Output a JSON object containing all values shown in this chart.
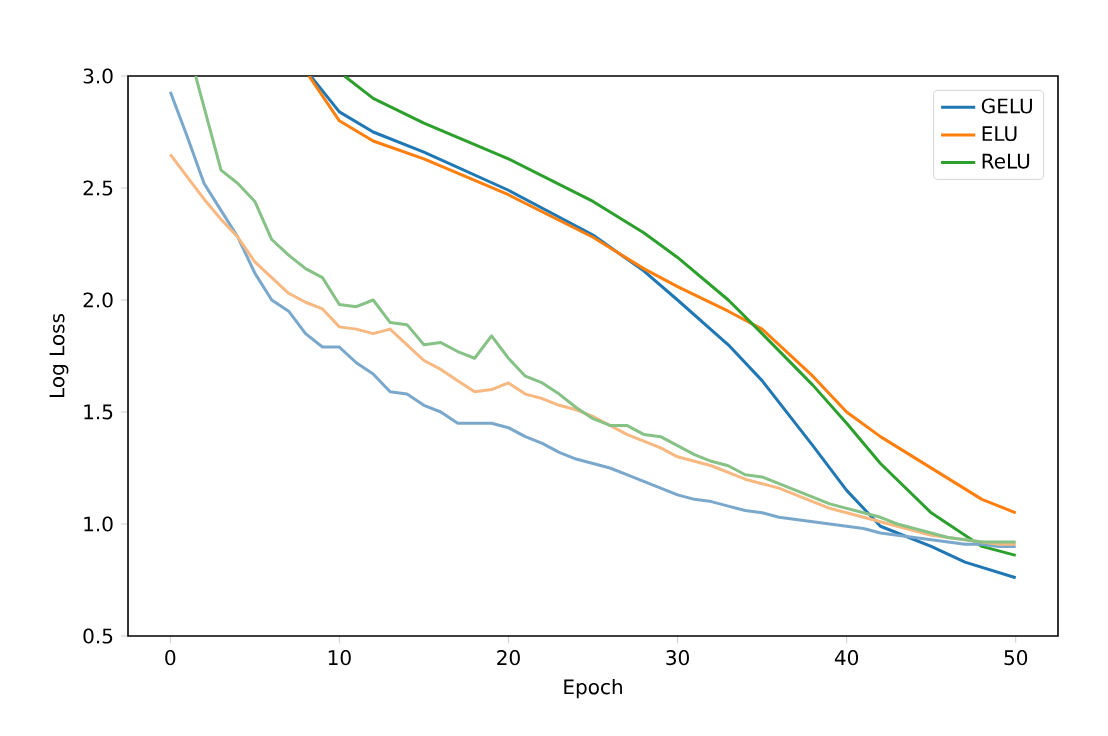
{
  "chart_data": {
    "type": "line",
    "xlabel": "Epoch",
    "ylabel": "Log Loss",
    "legend": "top right",
    "xlim": [
      -2.5,
      52.5
    ],
    "ylim": [
      0.5,
      3.0
    ],
    "xticks": [
      0,
      10,
      20,
      30,
      40,
      50
    ],
    "yticks": [
      {
        "value": 0.5,
        "label": "0.5"
      },
      {
        "value": 1,
        "label": "1.0"
      },
      {
        "value": 1.5,
        "label": "1.5"
      },
      {
        "value": 2,
        "label": "2.0"
      },
      {
        "value": 2.5,
        "label": "2.5"
      },
      {
        "value": 3,
        "label": "3.0"
      }
    ],
    "series": [
      {
        "name": "GELU",
        "color": "#1f77b4",
        "x": [
          8.3,
          10,
          12,
          15,
          20,
          25,
          28,
          30,
          33,
          35,
          38,
          40,
          42,
          45,
          47,
          50
        ],
        "values": [
          3.0,
          2.84,
          2.75,
          2.66,
          2.49,
          2.29,
          2.13,
          2.0,
          1.8,
          1.64,
          1.35,
          1.15,
          0.99,
          0.9,
          0.83,
          0.76
        ]
      },
      {
        "name": "ELU",
        "color": "#ff7f0e",
        "x": [
          8.2,
          10,
          12,
          15,
          20,
          25,
          28,
          30,
          33,
          35,
          38,
          40,
          42,
          45,
          48,
          50
        ],
        "values": [
          3.0,
          2.8,
          2.71,
          2.63,
          2.47,
          2.28,
          2.14,
          2.06,
          1.95,
          1.87,
          1.66,
          1.5,
          1.39,
          1.25,
          1.11,
          1.05
        ]
      },
      {
        "name": "ReLU",
        "color": "#2ca02c",
        "x": [
          10.3,
          12,
          15,
          20,
          25,
          28,
          30,
          33,
          35,
          38,
          40,
          42,
          45,
          47,
          48,
          50
        ],
        "values": [
          3.0,
          2.9,
          2.79,
          2.63,
          2.44,
          2.3,
          2.19,
          2.0,
          1.85,
          1.62,
          1.45,
          1.27,
          1.05,
          0.95,
          0.9,
          0.86
        ]
      },
      {
        "color": "#7aa8cc",
        "x": [
          0,
          1,
          2,
          3,
          4,
          5,
          6,
          7,
          8,
          9,
          10,
          11,
          12,
          13,
          14,
          15,
          16,
          17,
          18,
          19,
          20,
          21,
          22,
          23,
          24,
          25,
          26,
          27,
          28,
          29,
          30,
          31,
          32,
          33,
          34,
          35,
          36,
          37,
          38,
          39,
          40,
          41,
          42,
          43,
          44,
          45,
          46,
          47,
          48,
          49,
          50
        ],
        "values": [
          2.93,
          2.73,
          2.52,
          2.4,
          2.28,
          2.12,
          2.0,
          1.95,
          1.85,
          1.79,
          1.79,
          1.72,
          1.67,
          1.59,
          1.58,
          1.53,
          1.5,
          1.45,
          1.45,
          1.45,
          1.43,
          1.39,
          1.36,
          1.32,
          1.29,
          1.27,
          1.25,
          1.22,
          1.19,
          1.16,
          1.13,
          1.11,
          1.1,
          1.08,
          1.06,
          1.05,
          1.03,
          1.02,
          1.01,
          1.0,
          0.99,
          0.98,
          0.96,
          0.95,
          0.94,
          0.93,
          0.92,
          0.91,
          0.91,
          0.9,
          0.9
        ]
      },
      {
        "color": "#f7b882",
        "x": [
          0,
          1,
          2,
          3,
          4,
          5,
          6,
          7,
          8,
          9,
          10,
          11,
          12,
          13,
          14,
          15,
          16,
          17,
          18,
          19,
          20,
          21,
          22,
          23,
          24,
          25,
          26,
          27,
          28,
          29,
          30,
          31,
          32,
          33,
          34,
          35,
          36,
          37,
          38,
          39,
          40,
          41,
          42,
          43,
          44,
          45,
          46,
          47,
          48,
          49,
          50
        ],
        "values": [
          2.65,
          2.55,
          2.45,
          2.36,
          2.28,
          2.17,
          2.1,
          2.03,
          1.99,
          1.96,
          1.88,
          1.87,
          1.85,
          1.87,
          1.8,
          1.73,
          1.69,
          1.64,
          1.59,
          1.6,
          1.63,
          1.58,
          1.56,
          1.53,
          1.51,
          1.48,
          1.44,
          1.4,
          1.37,
          1.34,
          1.3,
          1.28,
          1.26,
          1.23,
          1.2,
          1.18,
          1.16,
          1.13,
          1.1,
          1.07,
          1.05,
          1.03,
          1.01,
          0.99,
          0.97,
          0.95,
          0.94,
          0.93,
          0.92,
          0.91,
          0.91
        ]
      },
      {
        "color": "#86c286",
        "x": [
          1.5,
          2,
          3,
          4,
          5,
          6,
          7,
          8,
          9,
          10,
          11,
          12,
          13,
          14,
          15,
          16,
          17,
          18,
          19,
          20,
          21,
          22,
          23,
          24,
          25,
          26,
          27,
          28,
          29,
          30,
          31,
          32,
          33,
          34,
          35,
          36,
          37,
          38,
          39,
          40,
          41,
          42,
          43,
          44,
          45,
          46,
          47,
          48,
          49,
          50
        ],
        "values": [
          3.0,
          2.86,
          2.58,
          2.52,
          2.44,
          2.27,
          2.2,
          2.14,
          2.1,
          1.98,
          1.97,
          2.0,
          1.9,
          1.89,
          1.8,
          1.81,
          1.77,
          1.74,
          1.84,
          1.74,
          1.66,
          1.63,
          1.58,
          1.52,
          1.47,
          1.44,
          1.44,
          1.4,
          1.39,
          1.35,
          1.31,
          1.28,
          1.26,
          1.22,
          1.21,
          1.18,
          1.15,
          1.12,
          1.09,
          1.07,
          1.05,
          1.03,
          1.0,
          0.98,
          0.96,
          0.94,
          0.93,
          0.92,
          0.92,
          0.92
        ]
      }
    ]
  }
}
